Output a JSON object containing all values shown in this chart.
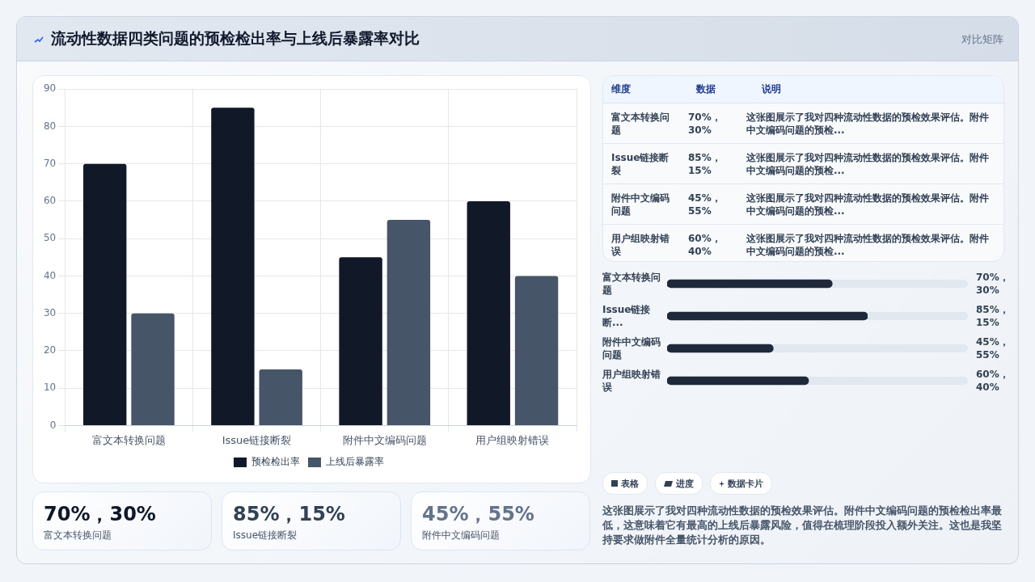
{
  "chart_data": [
    {
      "type": "other",
      "title": "流动性数据四类问题的预检检出率与上线后暴露率对比",
      "subtitle": "对比矩阵"
    },
    {
      "type": "bar",
      "categories": [
        "富文本转换问题",
        "Issue链接断裂",
        "附件中文编码问题",
        "用户组映射错误"
      ],
      "series": [
        {
          "name": "预检检出率",
          "color": "#111827",
          "values": [
            70,
            85,
            45,
            60
          ]
        },
        {
          "name": "上线后暴露率",
          "color": "#475569",
          "values": [
            30,
            15,
            55,
            40
          ]
        }
      ],
      "ylim": [
        0,
        90
      ],
      "yticks": [
        0,
        10,
        20,
        30,
        40,
        50,
        60,
        70,
        80,
        90
      ],
      "grid": true,
      "legend": "bottom"
    },
    {
      "type": "other",
      "categories": [
        "富文本转换问题",
        "Issue链接断裂",
        "附件中文编码问题",
        "用户组映射错误"
      ],
      "value_labels": [
        "70%，30%",
        "85%，15%",
        "45%，55%",
        "60%，40%"
      ],
      "annotations": [
        "维度",
        "数据",
        "说明",
        "这张图展示了我对四种流动性数据的预检效果评估。附件中文编码问题的预检...",
        "这张图展示了我对四种流动性数据的预检效果评估。附件中文编码问题的预检...",
        "这张图展示了我对四种流动性数据的预检效果评估。附件中文编码问题的预检...",
        "这张图展示了我对四种流动性数据的预检效果评估。附件中文编码问题的预检..."
      ]
    },
    {
      "type": "bar",
      "orientation": "horizontal",
      "color": "#1e293b",
      "categories": [
        "富文本转换问题",
        "Issue链接断...",
        "附件中文编码问题",
        "用户组映射错误"
      ],
      "values": [
        70,
        85,
        45,
        60
      ],
      "value_labels": [
        "70%，30%",
        "85%，15%",
        "45%，55%",
        "60%，40%"
      ]
    },
    {
      "type": "other",
      "categories": [
        "富文本转换问题",
        "Issue链接断裂",
        "附件中文编码问题"
      ],
      "value_labels": [
        "70%，30%",
        "85%，15%",
        "45%，55%"
      ]
    },
    {
      "type": "other",
      "annotations": [
        "表格",
        "进度",
        "数据卡片",
        "这张图展示了我对四种流动性数据的预检效果评估。附件中文编码问题的预检检出率最低，这意味着它有最高的上线后暴露风险，值得在梳理阶段投入额外关注。这也是我坚持要求做附件全量统计分析的原因。"
      ]
    }
  ]
}
